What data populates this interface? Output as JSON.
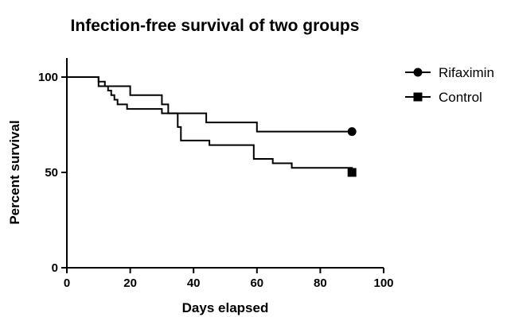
{
  "chart_data": {
    "type": "line",
    "title": "Infection-free survival of two groups",
    "xlabel": "Days elapsed",
    "ylabel": "Percent survival",
    "xlim": [
      0,
      100
    ],
    "ylim": [
      0,
      110
    ],
    "xticks": [
      0,
      20,
      40,
      60,
      80,
      100
    ],
    "yticks": [
      0,
      50,
      100
    ],
    "grid": false,
    "legend_position": "top-right",
    "step": true,
    "series": [
      {
        "name": "Rifaximin",
        "marker": "circle",
        "color": "#000000",
        "x": [
          0,
          8,
          10,
          20,
          30,
          32,
          44,
          60,
          90
        ],
        "y": [
          100,
          100,
          95.2,
          90.5,
          85.7,
          81,
          76.2,
          71.4,
          71.4
        ]
      },
      {
        "name": "Control",
        "marker": "square",
        "color": "#000000",
        "x": [
          0,
          8,
          10,
          12,
          13,
          14,
          15,
          16,
          19,
          30,
          35,
          36,
          45,
          59,
          65,
          71,
          90
        ],
        "y": [
          100,
          100,
          97.6,
          95.2,
          92.9,
          90.5,
          88.1,
          85.7,
          83.3,
          81,
          73.8,
          66.7,
          64.3,
          57.1,
          54.8,
          52.4,
          50
        ]
      }
    ]
  }
}
